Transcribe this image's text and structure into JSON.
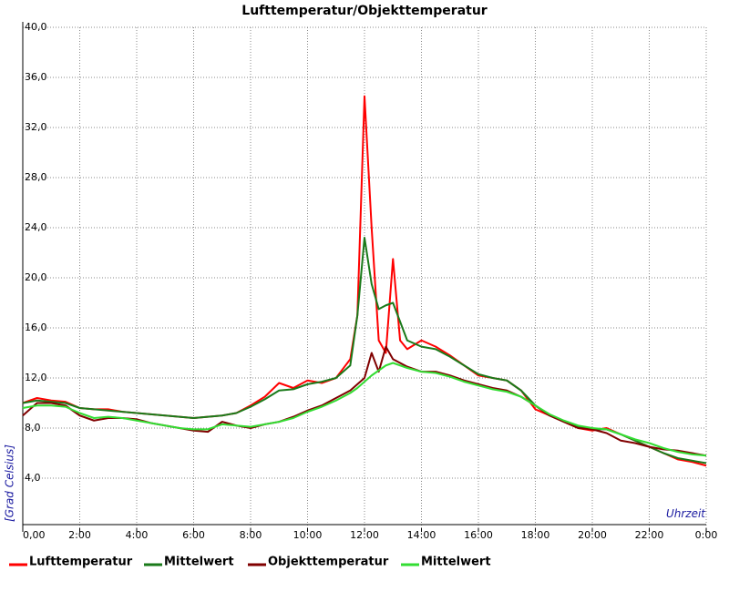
{
  "chart_data": {
    "type": "line",
    "title": "Lufttemperatur/Objekttemperatur",
    "y_label": "[Grad Celsius]",
    "x_label": "Uhrzeit",
    "x": [
      0,
      0.5,
      1,
      1.5,
      2,
      2.5,
      3,
      3.5,
      4,
      4.5,
      5,
      5.5,
      6,
      6.5,
      7,
      7.5,
      8,
      8.5,
      9,
      9.5,
      10,
      10.5,
      11,
      11.5,
      11.75,
      12,
      12.25,
      12.5,
      12.75,
      13,
      13.25,
      13.5,
      14,
      14.5,
      15,
      15.5,
      16,
      16.5,
      17,
      17.5,
      18,
      18.5,
      19,
      19.5,
      20,
      20.5,
      21,
      21.5,
      22,
      22.5,
      23,
      23.5,
      24
    ],
    "series": [
      {
        "name": "Lufttemperatur",
        "color": "#ff0000",
        "values": [
          10.0,
          10.4,
          10.2,
          10.1,
          9.6,
          9.5,
          9.5,
          9.3,
          9.2,
          9.1,
          9.0,
          8.9,
          8.8,
          8.9,
          9.0,
          9.2,
          9.8,
          10.5,
          11.6,
          11.2,
          11.8,
          11.6,
          12.0,
          13.5,
          17.0,
          34.5,
          24.0,
          15.0,
          14.0,
          21.5,
          15.0,
          14.3,
          15.0,
          14.5,
          13.8,
          13.0,
          12.2,
          12.0,
          11.8,
          11.0,
          9.5,
          9.0,
          8.5,
          8.0,
          7.8,
          8.0,
          7.5,
          7.0,
          6.5,
          6.0,
          5.5,
          5.3,
          5.0
        ]
      },
      {
        "name": "Mittelwert",
        "color": "#1a7a1a",
        "values": [
          10.0,
          10.2,
          10.1,
          10.0,
          9.6,
          9.5,
          9.4,
          9.3,
          9.2,
          9.1,
          9.0,
          8.9,
          8.8,
          8.9,
          9.0,
          9.2,
          9.7,
          10.3,
          11.0,
          11.1,
          11.5,
          11.7,
          12.0,
          13.0,
          17.0,
          23.2,
          19.5,
          17.5,
          17.8,
          18.0,
          16.5,
          15.0,
          14.5,
          14.3,
          13.7,
          13.0,
          12.3,
          12.0,
          11.8,
          11.0,
          9.8,
          9.0,
          8.5,
          8.1,
          7.9,
          7.9,
          7.5,
          7.0,
          6.5,
          6.0,
          5.6,
          5.4,
          5.2
        ]
      },
      {
        "name": "Objekttemperatur",
        "color": "#800000",
        "values": [
          9.0,
          10.0,
          10.0,
          9.8,
          9.0,
          8.6,
          8.8,
          8.8,
          8.7,
          8.4,
          8.2,
          8.0,
          7.8,
          7.7,
          8.5,
          8.2,
          8.0,
          8.3,
          8.5,
          8.9,
          9.4,
          9.8,
          10.4,
          11.0,
          11.5,
          12.0,
          14.0,
          12.5,
          14.5,
          13.5,
          13.2,
          12.9,
          12.5,
          12.5,
          12.2,
          11.8,
          11.5,
          11.2,
          11.0,
          10.5,
          9.8,
          9.0,
          8.5,
          8.0,
          7.9,
          7.6,
          7.0,
          6.8,
          6.5,
          6.3,
          6.2,
          6.0,
          5.8
        ]
      },
      {
        "name": "Mittelwert",
        "color": "#33dd33",
        "values": [
          9.6,
          9.8,
          9.8,
          9.7,
          9.2,
          8.8,
          8.9,
          8.8,
          8.6,
          8.4,
          8.2,
          8.0,
          7.9,
          7.9,
          8.3,
          8.2,
          8.1,
          8.3,
          8.5,
          8.8,
          9.3,
          9.7,
          10.2,
          10.8,
          11.2,
          11.7,
          12.2,
          12.6,
          13.0,
          13.2,
          13.0,
          12.8,
          12.5,
          12.4,
          12.1,
          11.7,
          11.4,
          11.1,
          10.9,
          10.5,
          9.8,
          9.1,
          8.6,
          8.2,
          8.0,
          7.9,
          7.5,
          7.1,
          6.8,
          6.4,
          6.1,
          5.9,
          5.8
        ]
      }
    ],
    "xlim": [
      0,
      24
    ],
    "xticks": [
      {
        "value": 0,
        "label": "0,00"
      },
      {
        "value": 2,
        "label": "2:00"
      },
      {
        "value": 4,
        "label": "4:00"
      },
      {
        "value": 6,
        "label": "6:00"
      },
      {
        "value": 8,
        "label": "8:00"
      },
      {
        "value": 10,
        "label": "10:00"
      },
      {
        "value": 12,
        "label": "12:00"
      },
      {
        "value": 14,
        "label": "14:00"
      },
      {
        "value": 16,
        "label": "16:00"
      },
      {
        "value": 18,
        "label": "18:00"
      },
      {
        "value": 20,
        "label": "20:00"
      },
      {
        "value": 22,
        "label": "22:00"
      },
      {
        "value": 24,
        "label": "0:00"
      }
    ],
    "ylim": [
      0,
      40
    ],
    "yticks": [
      {
        "value": 4,
        "label": "4,0"
      },
      {
        "value": 8,
        "label": "8,0"
      },
      {
        "value": 12,
        "label": "12,0"
      },
      {
        "value": 16,
        "label": "16,0"
      },
      {
        "value": 20,
        "label": "20,0"
      },
      {
        "value": 24,
        "label": "24,0"
      },
      {
        "value": 28,
        "label": "28,0"
      },
      {
        "value": 32,
        "label": "32,0"
      },
      {
        "value": 36,
        "label": "36,0"
      },
      {
        "value": 40,
        "label": "40,0"
      }
    ],
    "grid": true
  }
}
